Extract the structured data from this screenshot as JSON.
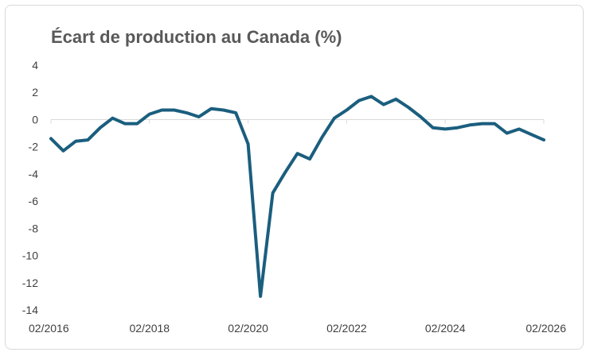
{
  "chart_data": {
    "type": "line",
    "title": "Écart de production au Canada (%)",
    "xlabel": "",
    "ylabel": "",
    "ylim": [
      -14,
      4
    ],
    "yticks": [
      4,
      2,
      0,
      -2,
      -4,
      -6,
      -8,
      -10,
      -12,
      -14
    ],
    "xlim": [
      "2016-02",
      "2026-02"
    ],
    "xticks": [
      "02/2016",
      "02/2018",
      "02/2020",
      "02/2022",
      "02/2024",
      "02/2026"
    ],
    "grid": false,
    "legend": "none",
    "colors": {
      "line": "#1b5e7e",
      "axis": "#d9d9d9",
      "title": "#595959",
      "tick": "#404040"
    },
    "series": [
      {
        "x": [
          "2016-02",
          "2016-05",
          "2016-08",
          "2016-11",
          "2017-02",
          "2017-05",
          "2017-08",
          "2017-11",
          "2018-02",
          "2018-05",
          "2018-08",
          "2018-11",
          "2019-02",
          "2019-05",
          "2019-08",
          "2019-11",
          "2020-02",
          "2020-05",
          "2020-08",
          "2020-11",
          "2021-02",
          "2021-05",
          "2021-08",
          "2021-11",
          "2022-02",
          "2022-05",
          "2022-08",
          "2022-11",
          "2023-02",
          "2023-05",
          "2023-08",
          "2023-11",
          "2024-02",
          "2024-05",
          "2024-08",
          "2024-11",
          "2025-02",
          "2025-05",
          "2025-08",
          "2025-11",
          "2026-02"
        ],
        "values": [
          -1.4,
          -2.3,
          -1.6,
          -1.5,
          -0.6,
          0.1,
          -0.3,
          -0.3,
          0.4,
          0.7,
          0.7,
          0.5,
          0.2,
          0.8,
          0.7,
          0.5,
          -1.8,
          -13.0,
          -5.4,
          -3.9,
          -2.5,
          -2.9,
          -1.3,
          0.1,
          0.7,
          1.4,
          1.7,
          1.1,
          1.5,
          0.9,
          0.2,
          -0.6,
          -0.7,
          -0.6,
          -0.4,
          -0.3,
          -0.3,
          -1.0,
          -0.7,
          -1.1,
          -1.5
        ]
      }
    ]
  }
}
